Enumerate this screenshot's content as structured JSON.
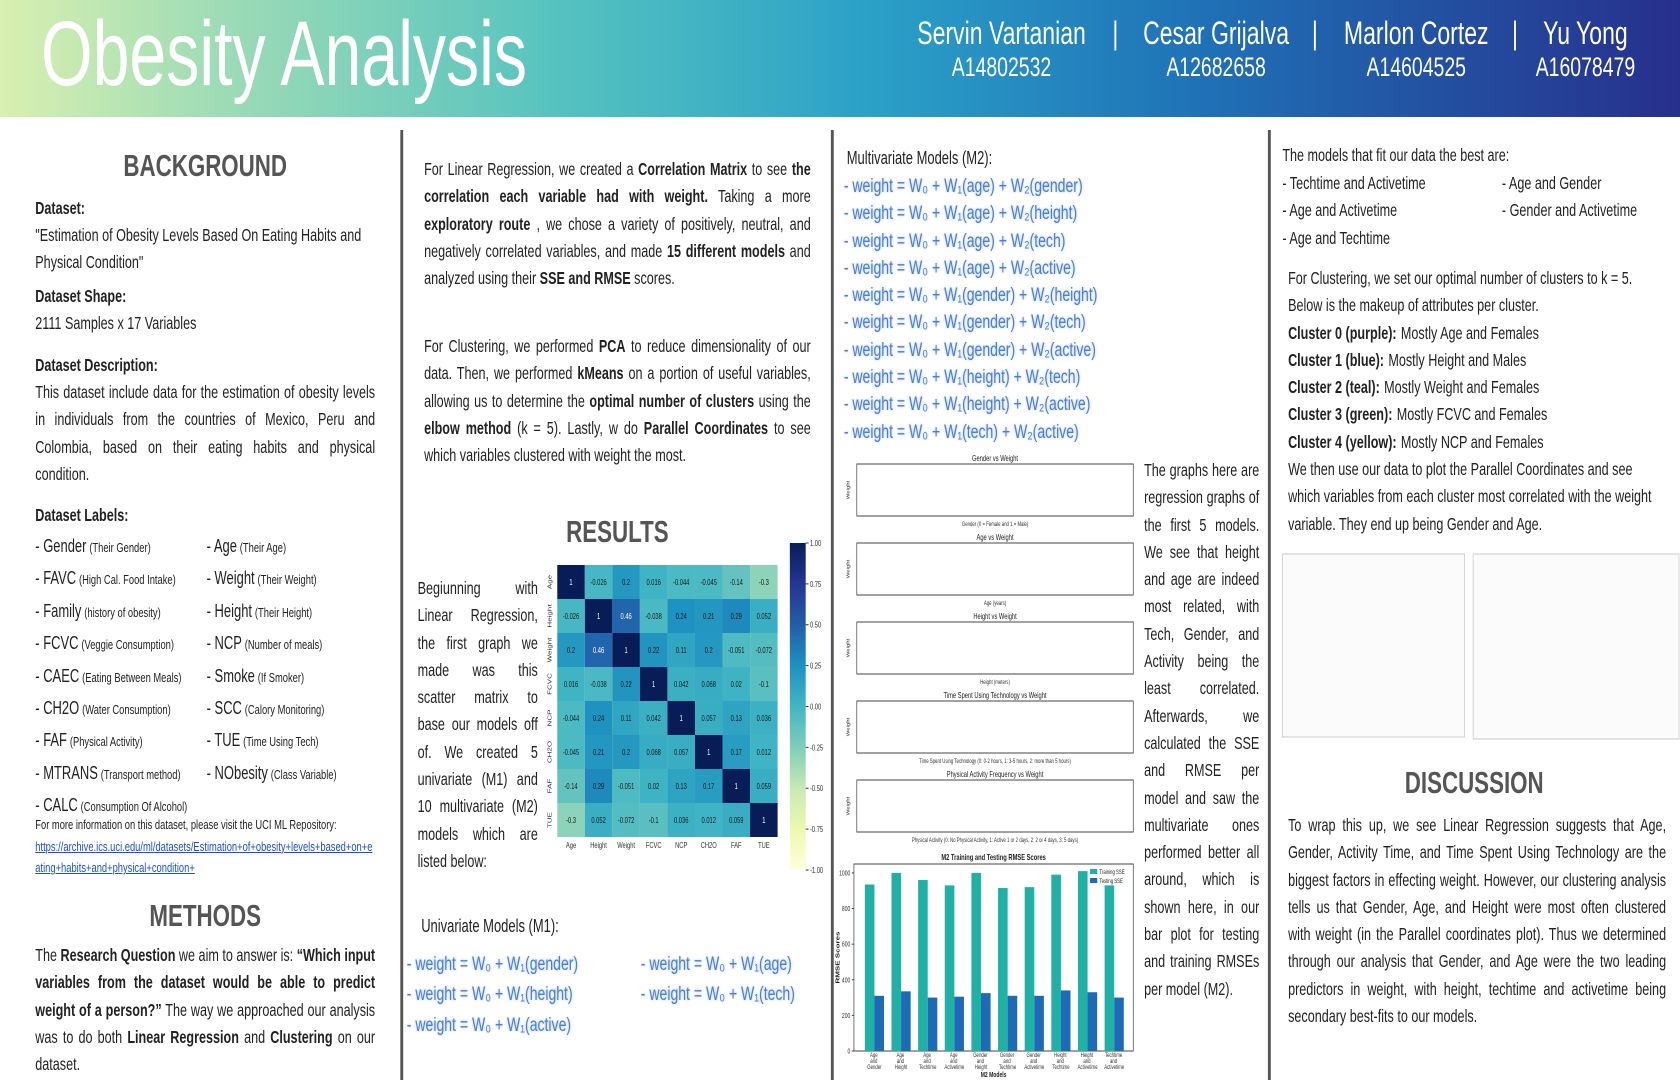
{
  "header": {
    "title": "Obesity Analysis",
    "separator": "|",
    "authors": [
      {
        "name": "Servin Vartanian",
        "id": "A14802532"
      },
      {
        "name": "Cesar Grijalva",
        "id": "A12682658"
      },
      {
        "name": "Marlon Cortez",
        "id": "A14604525"
      },
      {
        "name": "Yu Yong",
        "id": "A16078479"
      }
    ]
  },
  "background": {
    "heading": "BACKGROUND",
    "dataset_label": "Dataset:",
    "dataset": "\"Estimation of Obesity Levels Based On Eating Habits and Physical Condition\"",
    "shape_label": "Dataset Shape:",
    "shape": "2111 Samples x 17 Variables",
    "description_label": "Dataset Description:",
    "description": "This dataset include data for the estimation of obesity levels in individuals from the countries of Mexico, Peru and Colombia, based on their eating habits and physical condition.",
    "labels_label": "Dataset Labels:",
    "labels": [
      {
        "name": "- Gender",
        "note": "(Their Gender)"
      },
      {
        "name": "- Age",
        "note": "(Their Age)"
      },
      {
        "name": "- FAVC",
        "note": "(High Cal. Food Intake)"
      },
      {
        "name": "- Weight",
        "note": "(Their Weight)"
      },
      {
        "name": "- Family",
        "note": "(history of obesity)"
      },
      {
        "name": "- Height",
        "note": "(Their Height)"
      },
      {
        "name": "- FCVC",
        "note": "(Veggie Consumption)"
      },
      {
        "name": "- NCP",
        "note": "(Number of meals)"
      },
      {
        "name": "- CAEC",
        "note": "(Eating Between Meals)"
      },
      {
        "name": "- Smoke",
        "note": "(If Smoker)"
      },
      {
        "name": "- CH2O",
        "note": "(Water Consumption)"
      },
      {
        "name": "- SCC",
        "note": "(Calory Monitoring)"
      },
      {
        "name": "- FAF",
        "note": "(Physical Activity)"
      },
      {
        "name": "- TUE",
        "note": "(Time Using Tech)"
      },
      {
        "name": "- MTRANS",
        "note": "(Transport method)"
      },
      {
        "name": "- NObesity",
        "note": "(Class Variable)"
      },
      {
        "name": "- CALC",
        "note": "(Consumption Of Alcohol)"
      }
    ],
    "more_info": "For more information on this dataset, please visit the UCI ML Repository:",
    "link": "https://archive.ics.uci.edu/ml/datasets/Estimation+of+obesity+levels+based+on+eating+habits+and+physical+condition+"
  },
  "methods": {
    "heading": "METHODS",
    "paragraph": [
      "The ",
      "Research Question",
      " we aim to answer is: ",
      "“Which input variables from the dataset would be able to predict weight of a person?”",
      " The way we approached our analysis was to do both ",
      "Linear Regression",
      " and ",
      "Clustering",
      " on our dataset."
    ]
  },
  "approach": {
    "linear": [
      "For Linear Regression, we created a ",
      "Correlation Matrix",
      " to see ",
      "the correlation each variable had with weight.",
      " Taking a more ",
      "exploratory route",
      " , we chose a variety of positively, neutral, and negatively correlated variables, and made ",
      "15 different models",
      " and analyzed using their ",
      "SSE and RMSE",
      " scores."
    ],
    "clustering": [
      "For Clustering, we performed ",
      "PCA",
      " to reduce dimensionality of our data. Then, we performed ",
      "kMeans",
      " on a portion of useful variables, allowing us to determine the ",
      "optimal number of clusters",
      " using the ",
      "elbow method",
      " (k = 5). Lastly, w do ",
      "Parallel Coordinates",
      " to see which variables clustered with weight the most."
    ]
  },
  "results": {
    "heading": "RESULTS",
    "intro": "Begiunning with Linear Regression, the first graph we made was this scatter matrix to base our models off of. We created 5 univariate (M1) and 10 multivariate (M2) models which are listed below:",
    "heatmap": {
      "type": "heatmap",
      "categories": [
        "Age",
        "Height",
        "Weight",
        "FCVC",
        "NCP",
        "CH2O",
        "FAF",
        "TUE"
      ],
      "values": [
        [
          1,
          -0.026,
          0.2,
          0.016,
          -0.044,
          -0.045,
          -0.14,
          -0.3
        ],
        [
          -0.026,
          1,
          0.46,
          -0.038,
          0.24,
          0.21,
          0.29,
          0.052
        ],
        [
          0.2,
          0.46,
          1,
          0.22,
          0.11,
          0.2,
          -0.051,
          -0.072
        ],
        [
          0.016,
          -0.038,
          0.22,
          1,
          0.042,
          0.068,
          0.02,
          -0.1
        ],
        [
          -0.044,
          0.24,
          0.11,
          0.042,
          1,
          0.057,
          0.13,
          0.036
        ],
        [
          -0.045,
          0.21,
          0.2,
          0.068,
          0.057,
          1,
          0.17,
          0.012
        ],
        [
          -0.14,
          0.29,
          -0.051,
          0.02,
          0.13,
          0.17,
          1,
          0.059
        ],
        [
          -0.3,
          0.052,
          -0.072,
          -0.1,
          0.036,
          0.012,
          0.059,
          1
        ]
      ],
      "clim": [
        -1,
        1
      ],
      "cticks": [
        {
          "value": 1,
          "label": "1.00"
        },
        0.75,
        {
          "value": 0.5,
          "label": "0.50"
        },
        0.25,
        {
          "value": 0,
          "label": "0.00"
        },
        -0.25,
        {
          "value": -0.5,
          "label": "-0.50"
        },
        -0.75,
        {
          "value": -1,
          "label": "-1.00"
        }
      ]
    },
    "m1_heading": "Univariate Models (M1):",
    "m1": [
      "- weight = W₀ + W₁(gender)",
      "- weight = W₀ + W₁(age)",
      "- weight = W₀ + W₁(height)",
      "- weight = W₀ + W₁(tech)",
      "- weight = W₀ + W₁(active)"
    ],
    "m2_heading": "Multivariate Models (M2):",
    "m2": [
      "- weight = W₀ + W₁(age) +  W₂(gender)",
      "- weight = W₀ + W₁(age) +  W₂(height)",
      "- weight = W₀ + W₁(age) +  W₂(tech)",
      "- weight = W₀ + W₁(age) +  W₂(active)",
      "- weight = W₀ + W₁(gender) +  W₂(height)",
      "- weight = W₀ + W₁(gender) +  W₂(tech)",
      "- weight = W₀ + W₁(gender) +  W₂(active)",
      "- weight = W₀ + W₁(height) +  W₂(tech)",
      "- weight = W₀ + W₁(height) +  W₂(active)",
      "- weight = W₀ + W₁(tech) +  W₂(active)"
    ],
    "regression_plots": {
      "ylabel": "Weight",
      "plots": [
        {
          "title": "Gender vs Weight",
          "xlabel": "Gender (0 = Female and 1 = Male)"
        },
        {
          "title": "Age vs Weight",
          "xlabel": "Age (years)"
        },
        {
          "title": "Height vs Weight",
          "xlabel": "Height (meters)"
        },
        {
          "title": "Time Spent Using Technology vs Weight",
          "xlabel": "Time Spent Using Technology (0: 0-2 hours, 1: 3-5 hours, 2: more than 5 hours)"
        },
        {
          "title": "Physical Activity Frequency vs Weight",
          "xlabel": "Physical Activity (0: No Physical Activity, 1: Active 1 or 2 days, 2: 2 or 4 days, 3: 5 days)"
        }
      ]
    },
    "regression_text": "The graphs here are regression graphs of the first 5 models. We see that height and age are indeed most related, with Tech, Gender, and Activity being the least correlated. Afterwards, we calculated the SSE and RMSE per model and saw the multivariate ones performed better all around, which is shown here, in our bar plot for testing and training RMSEs per model (M2).",
    "bar_chart": {
      "type": "bar",
      "title": "M2 Training and Testing RMSE Scores",
      "xlabel": "M2 Models",
      "ylabel": "RMSE Scores",
      "categories": [
        "Age and Gender",
        "Age and Height",
        "Age and Techtime",
        "Age and Activetime",
        "Gender and Height",
        "Gender and Techtime",
        "Gender and Activetime",
        "Height and Techtime",
        "Height and Activetime",
        "Techtime and Activetime"
      ],
      "series": [
        {
          "name": "Training SSE",
          "color": "#1fb0a6",
          "values": [
            935,
            1000,
            960,
            930,
            1000,
            915,
            920,
            990,
            1010,
            930
          ]
        },
        {
          "name": "Testing SSE",
          "color": "#1f6ab6",
          "values": [
            310,
            335,
            300,
            305,
            325,
            310,
            310,
            340,
            330,
            300
          ]
        }
      ],
      "ylim": [
        0,
        1050
      ],
      "yticks": [
        0,
        200,
        400,
        600,
        800,
        1000
      ],
      "legend": "upper right"
    },
    "best_heading": "The models that fit our data the best are:",
    "best_models": [
      "- Techtime and Activetime",
      "- Age and Gender",
      "- Age and Activetime",
      "- Gender and Activetime",
      "- Age and Techtime"
    ],
    "clustering_intro": "For Clustering, we set our optimal number of clusters to k = 5. Below is the makeup of attributes per cluster.",
    "clusters": [
      {
        "label": "Cluster 0 (purple):",
        "text": "Mostly Age and Females"
      },
      {
        "label": "Cluster 1 (blue):",
        "text": "Mostly Height and Males"
      },
      {
        "label": "Cluster 2 (teal):",
        "text": "Mostly Weight and Females"
      },
      {
        "label": "Cluster 3 (green):",
        "text": "Mostly FCVC and Females"
      },
      {
        "label": "Cluster 4 (yellow):",
        "text": "Mostly NCP and Females"
      }
    ],
    "parallel_text": "We then use our data to plot the Parallel Coordinates and see which variables from each cluster most correlated with the weight variable. They end up being Gender and Age."
  },
  "discussion": {
    "heading": "DISCUSSION",
    "text": "To wrap this up, we see Linear Regression suggests that Age, Gender, Activity Time, and Time Spent Using Technology are the biggest factors in effecting weight. However, our clustering analysis tells us that Gender, Age, and Height were most often clustered with weight (in the Parallel coordinates plot). Thus we determined through our analysis that Gender, and Age were the two leading predictors in weight, with height, techtime and activetime being secondary best-fits to our models."
  }
}
